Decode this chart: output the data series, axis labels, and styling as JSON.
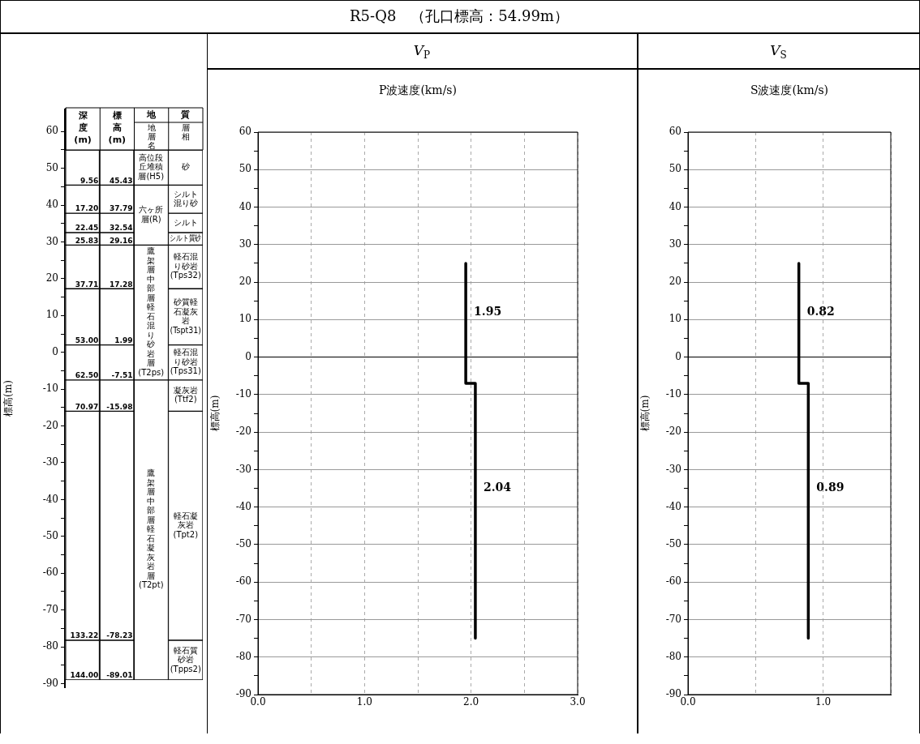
{
  "chart_data": [
    {
      "type": "bar",
      "ylabel": "標高(m)",
      "categories": [
        "深度(m)",
        "標高(m)",
        "地層名",
        "層相"
      ],
      "ylim": [
        -91,
        66
      ],
      "yticks": [
        -90,
        {
          "value": -85,
          "label": null
        },
        -80,
        {
          "value": -75,
          "label": null
        },
        -70,
        {
          "value": -65,
          "label": null
        },
        -60,
        {
          "value": -55,
          "label": null
        },
        -50,
        {
          "value": -45,
          "label": null
        },
        -40,
        {
          "value": -35,
          "label": null
        },
        -30,
        {
          "value": -25,
          "label": null
        },
        -20,
        {
          "value": -15,
          "label": null
        },
        -10,
        {
          "value": -5,
          "label": null
        },
        0,
        {
          "value": 5,
          "label": null
        },
        10,
        {
          "value": 15,
          "label": null
        },
        20,
        {
          "value": 25,
          "label": null
        },
        30,
        {
          "value": 35,
          "label": null
        },
        40,
        {
          "value": 45,
          "label": null
        },
        50,
        {
          "value": 55,
          "label": null
        },
        60
      ],
      "series": [
        {
          "name": "高位段丘堆積層(H5)",
          "color": "#ffffff",
          "values": [
            null,
            null,
            9.56,
            null
          ],
          "base": [
            null,
            null,
            45.43,
            null
          ]
        },
        {
          "name": "六ヶ所層(R)",
          "color": "#ffffff",
          "values": [
            null,
            null,
            16.27,
            null
          ],
          "base": [
            null,
            null,
            29.16,
            null
          ]
        },
        {
          "name": "鷹架層中部層軽石混り砂岩層(T2ps)",
          "color": "#ffffff",
          "values": [
            null,
            null,
            36.67,
            null
          ],
          "base": [
            null,
            null,
            -7.51,
            null
          ]
        },
        {
          "name": "鷹架層中部層軽石凝灰岩層(T2pt)",
          "color": "#ffffff",
          "values": [
            null,
            null,
            81.5,
            null
          ],
          "base": [
            null,
            null,
            -89.01,
            null
          ]
        },
        {
          "name": "砂",
          "color": "#ffffff",
          "values": [
            9.56,
            9.56,
            null,
            9.56
          ],
          "base": [
            45.43,
            45.43,
            null,
            45.43
          ]
        },
        {
          "name": "シルト混り砂",
          "color": "#ffffff",
          "values": [
            7.64,
            7.64,
            null,
            7.64
          ],
          "base": [
            37.79,
            37.79,
            null,
            37.79
          ]
        },
        {
          "name": "シルト",
          "color": "#ffffff",
          "values": [
            5.25,
            5.25,
            null,
            5.25
          ],
          "base": [
            32.54,
            32.54,
            null,
            32.54
          ]
        },
        {
          "name": "シルト質砂",
          "color": "#ffffff",
          "values": [
            3.38,
            3.38,
            null,
            3.38
          ],
          "base": [
            29.16,
            29.16,
            null,
            29.16
          ]
        },
        {
          "name": "軽石混り砂岩(Tps32)",
          "color": "#ffffff",
          "values": [
            11.88,
            11.88,
            null,
            11.88
          ],
          "base": [
            17.28,
            17.28,
            null,
            17.28
          ]
        },
        {
          "name": "砂質軽石凝灰岩(Tspt31)",
          "color": "#ffffff",
          "values": [
            15.29,
            15.29,
            null,
            15.29
          ],
          "base": [
            1.99,
            1.99,
            null,
            1.99
          ]
        },
        {
          "name": "軽石混り砂岩(Tps31)",
          "color": "#ffffff",
          "values": [
            9.5,
            9.5,
            null,
            9.5
          ],
          "base": [
            -7.51,
            -7.51,
            null,
            -7.51
          ]
        },
        {
          "name": "凝灰岩(Ttf2)",
          "color": "#ffffff",
          "values": [
            8.47,
            8.47,
            null,
            8.47
          ],
          "base": [
            -15.98,
            -15.98,
            null,
            -15.98
          ]
        },
        {
          "name": "軽石凝灰岩(Tpt2)",
          "color": "#ffffff",
          "values": [
            62.25,
            62.25,
            null,
            62.25
          ],
          "base": [
            -78.23,
            -78.23,
            null,
            -78.23
          ]
        },
        {
          "name": "軽石質砂岩(Tpps2)",
          "color": "#ffffff",
          "values": [
            10.78,
            10.78,
            null,
            10.78
          ],
          "base": [
            -89.01,
            -89.01,
            null,
            -89.01
          ]
        }
      ],
      "annotations": [
        "地質",
        {
          "text": "9.56",
          "x": "深度(m)",
          "y": 45.43
        },
        {
          "text": "45.43",
          "x": "標高(m)",
          "y": 45.43
        },
        {
          "text": "17.20",
          "x": "深度(m)",
          "y": 37.79
        },
        {
          "text": "37.79",
          "x": "標高(m)",
          "y": 37.79
        },
        {
          "text": "22.45",
          "x": "深度(m)",
          "y": 32.54
        },
        {
          "text": "32.54",
          "x": "標高(m)",
          "y": 32.54
        },
        {
          "text": "25.83",
          "x": "深度(m)",
          "y": 29.16
        },
        {
          "text": "29.16",
          "x": "標高(m)",
          "y": 29.16
        },
        {
          "text": "37.71",
          "x": "深度(m)",
          "y": 17.28
        },
        {
          "text": "17.28",
          "x": "標高(m)",
          "y": 17.28
        },
        {
          "text": "53.00",
          "x": "深度(m)",
          "y": 1.99
        },
        {
          "text": "1.99",
          "x": "標高(m)",
          "y": 1.99
        },
        {
          "text": "62.50",
          "x": "深度(m)",
          "y": -7.51
        },
        {
          "text": "-7.51",
          "x": "標高(m)",
          "y": -7.51
        },
        {
          "text": "70.97",
          "x": "深度(m)",
          "y": -15.98
        },
        {
          "text": "-15.98",
          "x": "標高(m)",
          "y": -15.98
        },
        {
          "text": "133.22",
          "x": "深度(m)",
          "y": -78.23
        },
        {
          "text": "-78.23",
          "x": "標高(m)",
          "y": -78.23
        },
        {
          "text": "144.00",
          "x": "深度(m)",
          "y": -89.01
        },
        {
          "text": "-89.01",
          "x": "標高(m)",
          "y": -89.01
        }
      ]
    },
    {
      "type": "line",
      "title": "R5-Q8　（孔口標高：54.99m）",
      "subtitle": "V$_{P}$",
      "xlabel": "P波速度(km/s)",
      "ylabel": "標高(m)",
      "x": [
        1.95,
        1.95,
        2.04,
        2.04
      ],
      "values": [
        25,
        -7,
        -7,
        -75
      ],
      "color": "#000000",
      "marker": "none",
      "grid": true,
      "xlim": [
        0,
        3
      ],
      "xticks": [
        {
          "value": 0,
          "label": "0.0"
        },
        {
          "value": 0.5,
          "label": null
        },
        {
          "value": 1,
          "label": "1.0"
        },
        {
          "value": 1.5,
          "label": null
        },
        {
          "value": 2,
          "label": "2.0"
        },
        {
          "value": 2.5,
          "label": null
        },
        {
          "value": 3,
          "label": "3.0"
        }
      ],
      "ylim": [
        -90,
        60
      ],
      "yticks": [
        -90,
        {
          "value": -85,
          "label": null
        },
        -80,
        {
          "value": -75,
          "label": null
        },
        -70,
        {
          "value": -65,
          "label": null
        },
        -60,
        {
          "value": -55,
          "label": null
        },
        -50,
        {
          "value": -45,
          "label": null
        },
        -40,
        {
          "value": -35,
          "label": null
        },
        -30,
        {
          "value": -25,
          "label": null
        },
        -20,
        {
          "value": -15,
          "label": null
        },
        -10,
        {
          "value": -5,
          "label": null
        },
        0,
        {
          "value": 5,
          "label": null
        },
        10,
        {
          "value": 15,
          "label": null
        },
        20,
        {
          "value": 25,
          "label": null
        },
        30,
        {
          "value": 35,
          "label": null
        },
        40,
        {
          "value": 45,
          "label": null
        },
        50,
        {
          "value": 55,
          "label": null
        },
        60
      ],
      "ref_lines": [
        {
          "axis": "y",
          "value": 0,
          "color": "#000000"
        }
      ],
      "annotations": [
        {
          "text": "1.95",
          "x": 1.95,
          "y": 12
        },
        {
          "text": "2.04",
          "x": 2.04,
          "y": -35
        }
      ]
    },
    {
      "type": "line",
      "title": "V$_{S}$",
      "xlabel": "S波速度(km/s)",
      "ylabel": "標高(m)",
      "x": [
        0.82,
        0.82,
        0.89,
        0.89
      ],
      "values": [
        25,
        -7,
        -7,
        -75
      ],
      "color": "#000000",
      "marker": "none",
      "grid": true,
      "xlim": [
        0,
        1.5
      ],
      "xticks": [
        {
          "value": 0,
          "label": "0.0"
        },
        {
          "value": 0.5,
          "label": null
        },
        {
          "value": 1,
          "label": "1.0"
        },
        {
          "value": 1.5,
          "label": null
        }
      ],
      "ylim": [
        -90,
        60
      ],
      "yticks": [
        -90,
        {
          "value": -85,
          "label": null
        },
        -80,
        {
          "value": -75,
          "label": null
        },
        -70,
        {
          "value": -65,
          "label": null
        },
        -60,
        {
          "value": -55,
          "label": null
        },
        -50,
        {
          "value": -45,
          "label": null
        },
        -40,
        {
          "value": -35,
          "label": null
        },
        -30,
        {
          "value": -25,
          "label": null
        },
        -20,
        {
          "value": -15,
          "label": null
        },
        -10,
        {
          "value": -5,
          "label": null
        },
        0,
        {
          "value": 5,
          "label": null
        },
        10,
        {
          "value": 15,
          "label": null
        },
        20,
        {
          "value": 25,
          "label": null
        },
        30,
        {
          "value": 35,
          "label": null
        },
        40,
        {
          "value": 45,
          "label": null
        },
        50,
        {
          "value": 55,
          "label": null
        },
        60
      ],
      "ref_lines": [
        {
          "axis": "y",
          "value": 0,
          "color": "#000000"
        }
      ],
      "annotations": [
        {
          "text": "0.82",
          "x": 0.82,
          "y": 12
        },
        {
          "text": "0.89",
          "x": 0.89,
          "y": -35
        }
      ]
    }
  ]
}
